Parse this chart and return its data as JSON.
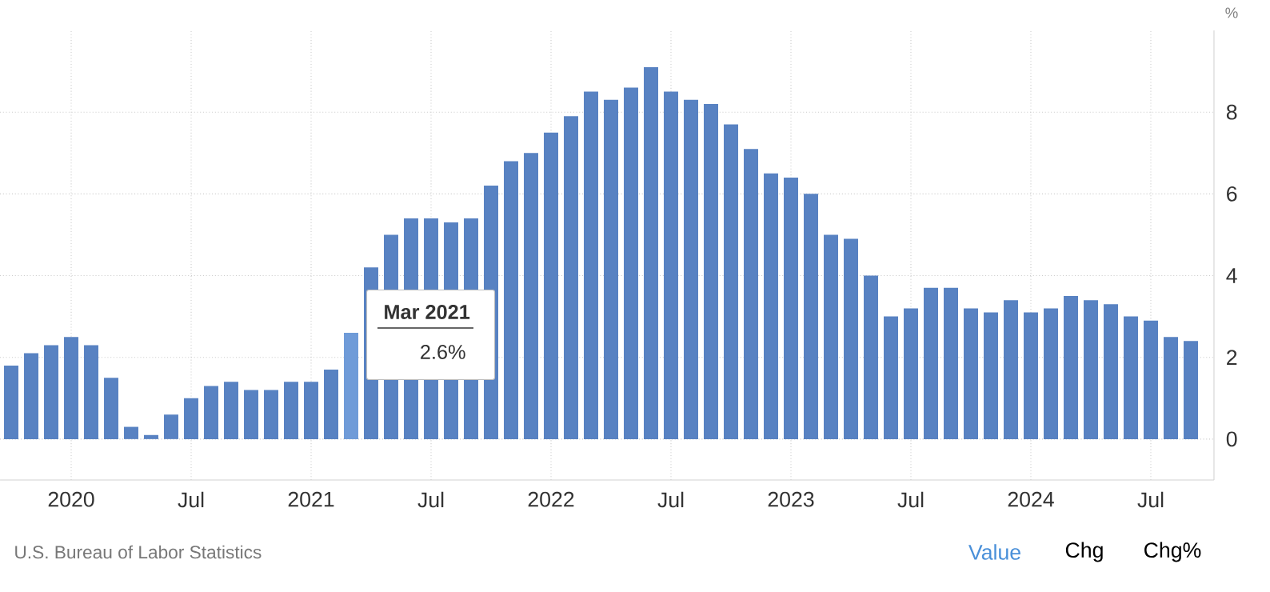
{
  "chart_data": {
    "type": "bar",
    "categories": [
      null,
      null,
      null,
      "2020",
      null,
      null,
      null,
      null,
      null,
      "Jul",
      null,
      null,
      null,
      null,
      null,
      "2021",
      null,
      null,
      null,
      null,
      null,
      "Jul",
      null,
      null,
      null,
      null,
      null,
      "2022",
      null,
      null,
      null,
      null,
      null,
      "Jul",
      null,
      null,
      null,
      null,
      null,
      "2023",
      null,
      null,
      null,
      null,
      null,
      "Jul",
      null,
      null,
      null,
      null,
      null,
      "2024",
      null,
      null,
      null,
      null,
      null,
      "Jul",
      null,
      null
    ],
    "values": [
      1.8,
      2.1,
      2.3,
      2.5,
      2.3,
      1.5,
      0.3,
      0.1,
      0.6,
      1.0,
      1.3,
      1.4,
      1.2,
      1.2,
      1.4,
      1.4,
      1.7,
      2.6,
      4.2,
      5.0,
      5.4,
      5.4,
      5.3,
      5.4,
      6.2,
      6.8,
      7.0,
      7.5,
      7.9,
      8.5,
      8.3,
      8.6,
      9.1,
      8.5,
      8.3,
      8.2,
      7.7,
      7.1,
      6.5,
      6.4,
      6.0,
      5.0,
      4.9,
      4.0,
      3.0,
      3.2,
      3.7,
      3.7,
      3.2,
      3.1,
      3.4,
      3.1,
      3.2,
      3.5,
      3.4,
      3.3,
      3.0,
      2.9,
      2.5,
      2.4
    ],
    "colors": [
      "#5882c2",
      "#5882c2",
      "#5882c2",
      "#5882c2",
      "#5882c2",
      "#5882c2",
      "#5882c2",
      "#5882c2",
      "#5882c2",
      "#5882c2",
      "#5882c2",
      "#5882c2",
      "#5882c2",
      "#5882c2",
      "#5882c2",
      "#5882c2",
      "#5882c2",
      "#6f9bd8",
      "#5882c2",
      "#5882c2",
      "#5882c2",
      "#5882c2",
      "#5882c2",
      "#5882c2",
      "#5882c2",
      "#5882c2",
      "#5882c2",
      "#5882c2",
      "#5882c2",
      "#5882c2",
      "#5882c2",
      "#5882c2",
      "#5882c2",
      "#5882c2",
      "#5882c2",
      "#5882c2",
      "#5882c2",
      "#5882c2",
      "#5882c2",
      "#5882c2",
      "#5882c2",
      "#5882c2",
      "#5882c2",
      "#5882c2",
      "#5882c2",
      "#5882c2",
      "#5882c2",
      "#5882c2",
      "#5882c2",
      "#5882c2",
      "#5882c2",
      "#5882c2",
      "#5882c2",
      "#5882c2",
      "#5882c2",
      "#5882c2",
      "#5882c2",
      "#5882c2",
      "#5882c2",
      "#5882c2"
    ],
    "ylabel": "%",
    "ylim": [
      -1,
      10
    ],
    "yticks": [
      0,
      2,
      4,
      6,
      8
    ],
    "grid": true,
    "annotations": [
      "Mar 2021",
      "2.6%",
      "U.S. Bureau of Labor Statistics",
      "Value",
      "Chg",
      "Chg%"
    ]
  }
}
